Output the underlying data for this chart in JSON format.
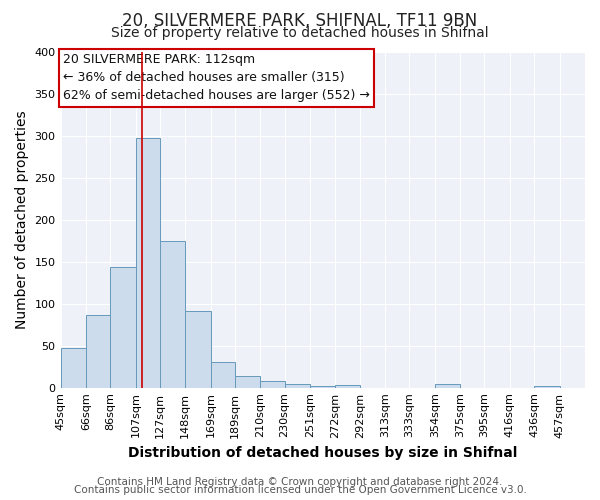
{
  "title": "20, SILVERMERE PARK, SHIFNAL, TF11 9BN",
  "subtitle": "Size of property relative to detached houses in Shifnal",
  "xlabel": "Distribution of detached houses by size in Shifnal",
  "ylabel": "Number of detached properties",
  "footnote1": "Contains HM Land Registry data © Crown copyright and database right 2024.",
  "footnote2": "Contains public sector information licensed under the Open Government Licence v3.0.",
  "bin_labels": [
    "45sqm",
    "66sqm",
    "86sqm",
    "107sqm",
    "127sqm",
    "148sqm",
    "169sqm",
    "189sqm",
    "210sqm",
    "230sqm",
    "251sqm",
    "272sqm",
    "292sqm",
    "313sqm",
    "333sqm",
    "354sqm",
    "375sqm",
    "395sqm",
    "416sqm",
    "436sqm",
    "457sqm"
  ],
  "bin_edges": [
    45,
    66,
    86,
    107,
    127,
    148,
    169,
    189,
    210,
    230,
    251,
    272,
    292,
    313,
    333,
    354,
    375,
    395,
    416,
    436,
    457
  ],
  "bar_heights": [
    47,
    87,
    143,
    297,
    175,
    91,
    30,
    14,
    8,
    4,
    2,
    3,
    0,
    0,
    0,
    4,
    0,
    0,
    0,
    2,
    0
  ],
  "bar_color": "#ccdcec",
  "bar_edge_color": "#6699bb",
  "property_size": 112,
  "vline_color": "#cc0000",
  "annotation_title": "20 SILVERMERE PARK: 112sqm",
  "annotation_line1": "← 36% of detached houses are smaller (315)",
  "annotation_line2": "62% of semi-detached houses are larger (552) →",
  "annotation_box_color": "#ffffff",
  "annotation_box_edge_color": "#cc0000",
  "ylim": [
    0,
    400
  ],
  "yticks": [
    0,
    50,
    100,
    150,
    200,
    250,
    300,
    350,
    400
  ],
  "bg_color": "#ffffff",
  "plot_bg_color": "#eef2f8",
  "grid_color": "#ffffff",
  "title_fontsize": 12,
  "subtitle_fontsize": 10,
  "axis_label_fontsize": 10,
  "tick_fontsize": 8,
  "annotation_fontsize": 9,
  "footnote_fontsize": 7.5
}
